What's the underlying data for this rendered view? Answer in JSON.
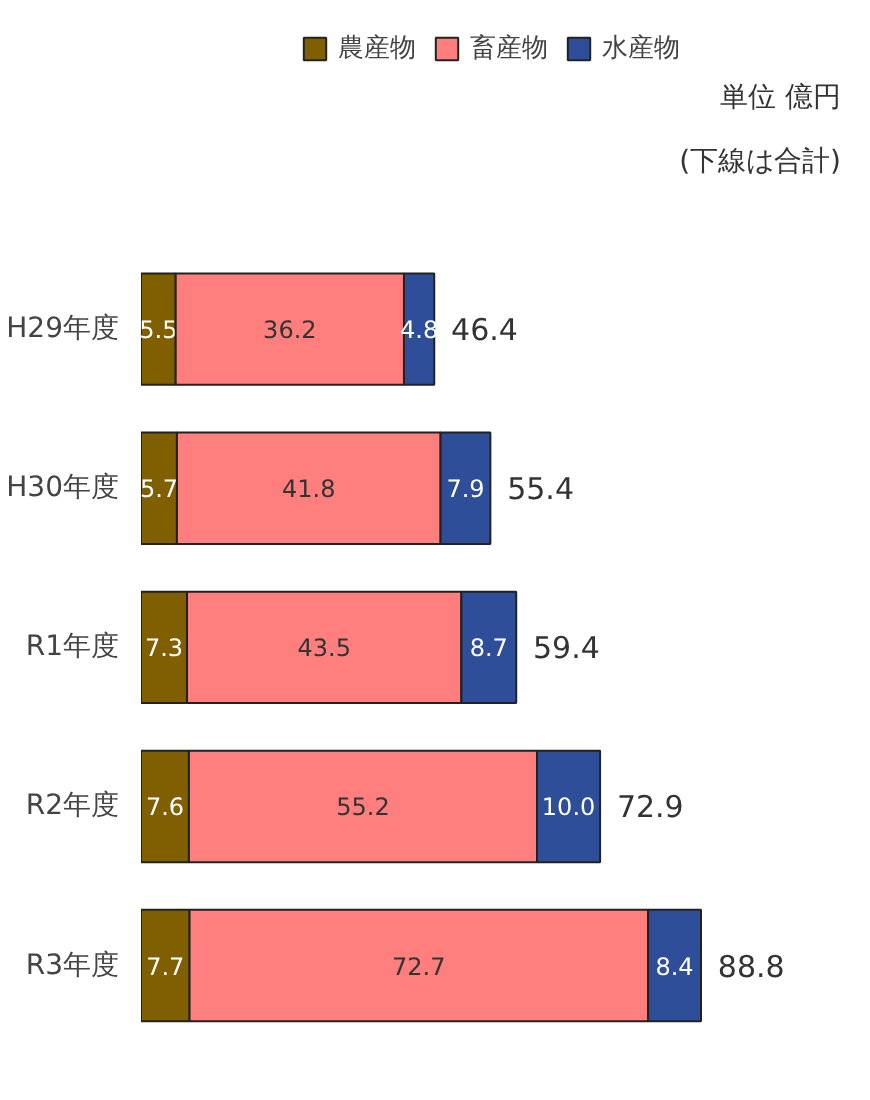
{
  "chart_data": {
    "type": "bar",
    "orientation": "horizontal",
    "stacked": true,
    "data_labels": true,
    "legend": "top",
    "grid": false,
    "tick_labels": "y",
    "categories": [
      "H29年度",
      "H30年度",
      "R1年度",
      "R2年度",
      "R3年度"
    ],
    "series": [
      {
        "name": "農産物",
        "color": "#7f5f00",
        "values": [
          5.5,
          5.7,
          7.3,
          7.6,
          7.7
        ]
      },
      {
        "name": "畜産物",
        "color": "#ff7f7f",
        "values": [
          36.2,
          41.8,
          43.5,
          55.2,
          72.7
        ]
      },
      {
        "name": "水産物",
        "color": "#2e4e99",
        "values": [
          4.8,
          7.9,
          8.7,
          10.0,
          8.4
        ],
        "value_labels": [
          "4.8",
          "7.9",
          "8.7",
          "10.0",
          "8.4"
        ]
      }
    ],
    "totals": [
      "46.4",
      "55.4",
      "59.4",
      "72.9",
      "88.8"
    ],
    "annotations": [
      "単位 億円",
      "(下線は合計)"
    ]
  }
}
